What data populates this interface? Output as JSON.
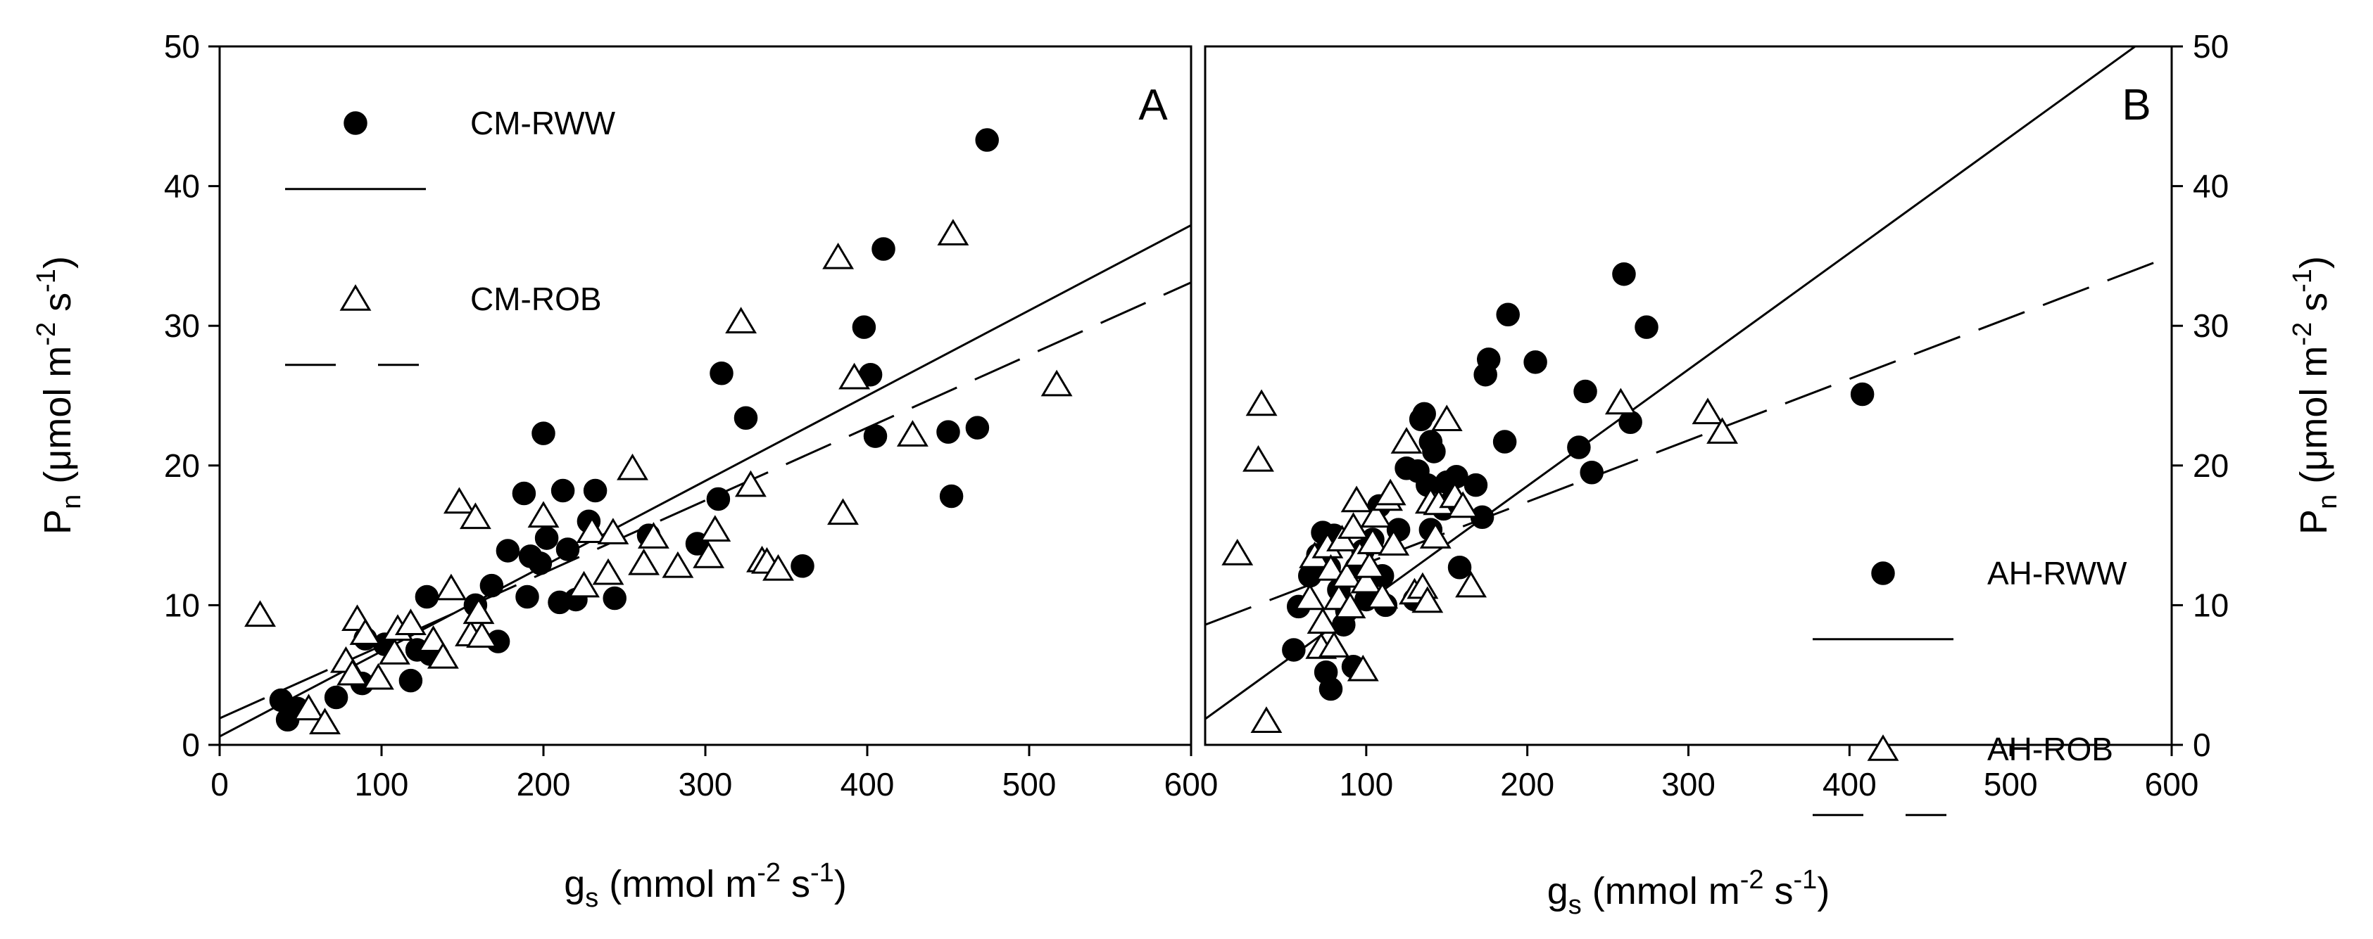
{
  "chart_data": [
    {
      "id": "A",
      "type": "scatter",
      "panel_label": "A",
      "xlabel": {
        "base": "g",
        "sub": "s",
        "unit_pre": " (mmol m",
        "sup1": "-2",
        "unit_mid": " s",
        "sup2": "-1",
        "unit_post": ")"
      },
      "ylabel": {
        "base": "P",
        "sub": "n",
        "unit_pre": " (μmol m",
        "sup1": "-2",
        "unit_mid": " s",
        "sup2": "-1",
        "unit_post": ")"
      },
      "xlim": [
        0,
        600
      ],
      "ylim": [
        0,
        50
      ],
      "xticks": [
        "0",
        "100",
        "200",
        "300",
        "400",
        "500",
        "600"
      ],
      "yticks": [
        "0",
        "10",
        "20",
        "30",
        "40",
        "50"
      ],
      "legend_position": "top-left",
      "series": [
        {
          "name": "CM-RWW",
          "marker": "filled-circle",
          "line_style": "solid",
          "fit": {
            "slope": 0.061,
            "intercept": 0.6
          },
          "points": [
            [
              38,
              3.2
            ],
            [
              42,
              1.8
            ],
            [
              48,
              2.6
            ],
            [
              72,
              3.4
            ],
            [
              88,
              4.4
            ],
            [
              90,
              7.6
            ],
            [
              102,
              7.2
            ],
            [
              118,
              4.6
            ],
            [
              122,
              6.8
            ],
            [
              128,
              10.6
            ],
            [
              130,
              6.5
            ],
            [
              158,
              10
            ],
            [
              168,
              11.4
            ],
            [
              172,
              7.4
            ],
            [
              178,
              13.9
            ],
            [
              188,
              18
            ],
            [
              190,
              10.6
            ],
            [
              192,
              13.5
            ],
            [
              198,
              13
            ],
            [
              200,
              22.3
            ],
            [
              202,
              14.8
            ],
            [
              210,
              10.2
            ],
            [
              212,
              18.2
            ],
            [
              215,
              14
            ],
            [
              220,
              10.4
            ],
            [
              228,
              16
            ],
            [
              232,
              18.2
            ],
            [
              244,
              10.5
            ],
            [
              265,
              15
            ],
            [
              295,
              14.4
            ],
            [
              308,
              17.6
            ],
            [
              310,
              26.6
            ],
            [
              325,
              23.4
            ],
            [
              360,
              12.8
            ],
            [
              398,
              29.9
            ],
            [
              402,
              26.5
            ],
            [
              405,
              22.1
            ],
            [
              410,
              35.5
            ],
            [
              450,
              22.4
            ],
            [
              452,
              17.8
            ],
            [
              468,
              22.7
            ],
            [
              474,
              43.3
            ]
          ]
        },
        {
          "name": "CM-ROB",
          "marker": "open-triangle",
          "line_style": "dashed",
          "fit": {
            "slope": 0.052,
            "intercept": 1.9
          },
          "points": [
            [
              25,
              9.3
            ],
            [
              55,
              2.6
            ],
            [
              65,
              1.6
            ],
            [
              78,
              6
            ],
            [
              82,
              5.1
            ],
            [
              85,
              9
            ],
            [
              90,
              8
            ],
            [
              98,
              4.8
            ],
            [
              108,
              6.6
            ],
            [
              110,
              8.3
            ],
            [
              118,
              8.7
            ],
            [
              132,
              7.5
            ],
            [
              138,
              6.3
            ],
            [
              143,
              11.2
            ],
            [
              148,
              17.4
            ],
            [
              155,
              7.9
            ],
            [
              158,
              16.3
            ],
            [
              162,
              7.8
            ],
            [
              160,
              9.5
            ],
            [
              200,
              16.4
            ],
            [
              225,
              11.4
            ],
            [
              230,
              15.3
            ],
            [
              240,
              12.3
            ],
            [
              243,
              15.2
            ],
            [
              255,
              19.8
            ],
            [
              262,
              13
            ],
            [
              268,
              14.9
            ],
            [
              283,
              12.8
            ],
            [
              302,
              13.5
            ],
            [
              306,
              15.4
            ],
            [
              322,
              30.3
            ],
            [
              328,
              18.6
            ],
            [
              335,
              13.2
            ],
            [
              338,
              13.1
            ],
            [
              345,
              12.6
            ],
            [
              382,
              34.9
            ],
            [
              385,
              16.6
            ],
            [
              392,
              26.3
            ],
            [
              428,
              22.2
            ],
            [
              453,
              36.6
            ],
            [
              517,
              25.8
            ]
          ]
        }
      ]
    },
    {
      "id": "B",
      "type": "scatter",
      "panel_label": "B",
      "xlabel": {
        "base": "g",
        "sub": "s",
        "unit_pre": " (mmol m",
        "sup1": "-2",
        "unit_mid": " s",
        "sup2": "-1",
        "unit_post": ")"
      },
      "ylabel": {
        "base": "P",
        "sub": "n",
        "unit_pre": " (μmol m",
        "sup1": "-2",
        "unit_mid": " s",
        "sup2": "-1",
        "unit_post": ")"
      },
      "xlim": [
        0,
        600
      ],
      "ylim": [
        0,
        50
      ],
      "xticks": [
        "100",
        "200",
        "300",
        "400",
        "500",
        "600"
      ],
      "yticks": [
        "0",
        "10",
        "20",
        "30",
        "40",
        "50"
      ],
      "legend_position": "bottom-right",
      "series": [
        {
          "name": "AH-RWW",
          "marker": "filled-circle",
          "line_style": "solid",
          "fit": {
            "slope": 0.0834,
            "intercept": 1.85
          },
          "points": [
            [
              55,
              6.8
            ],
            [
              58,
              9.9
            ],
            [
              65,
              12.1
            ],
            [
              70,
              13.6
            ],
            [
              73,
              15.2
            ],
            [
              75,
              5.2
            ],
            [
              77,
              12.7
            ],
            [
              78,
              4
            ],
            [
              80,
              15
            ],
            [
              83,
              11.1
            ],
            [
              86,
              8.6
            ],
            [
              88,
              9.6
            ],
            [
              92,
              5.6
            ],
            [
              94,
              12.7
            ],
            [
              98,
              13.9
            ],
            [
              100,
              10.4
            ],
            [
              104,
              14.7
            ],
            [
              108,
              17.1
            ],
            [
              110,
              12.1
            ],
            [
              112,
              10
            ],
            [
              120,
              15.4
            ],
            [
              125,
              19.8
            ],
            [
              130,
              10.4
            ],
            [
              132,
              19.6
            ],
            [
              134,
              23.3
            ],
            [
              136,
              23.7
            ],
            [
              138,
              18.6
            ],
            [
              140,
              21.7
            ],
            [
              140,
              15.4
            ],
            [
              142,
              21
            ],
            [
              148,
              16.9
            ],
            [
              150,
              18.8
            ],
            [
              152,
              17.3
            ],
            [
              156,
              19.2
            ],
            [
              158,
              12.7
            ],
            [
              168,
              18.6
            ],
            [
              172,
              16.3
            ],
            [
              174,
              26.5
            ],
            [
              176,
              27.6
            ],
            [
              186,
              21.7
            ],
            [
              188,
              30.8
            ],
            [
              205,
              27.4
            ],
            [
              232,
              21.3
            ],
            [
              236,
              25.3
            ],
            [
              240,
              19.5
            ],
            [
              260,
              33.7
            ],
            [
              264,
              23.1
            ],
            [
              274,
              29.9
            ],
            [
              408,
              25.1
            ]
          ]
        },
        {
          "name": "AH-ROB",
          "marker": "open-triangle",
          "line_style": "dashed",
          "fit": {
            "slope": 0.044,
            "intercept": 8.6
          },
          "points": [
            [
              20,
              13.7
            ],
            [
              33,
              20.4
            ],
            [
              35,
              24.4
            ],
            [
              38,
              1.7
            ],
            [
              65,
              10.5
            ],
            [
              68,
              13.5
            ],
            [
              72,
              7
            ],
            [
              73,
              8.8
            ],
            [
              76,
              14.2
            ],
            [
              78,
              12.6
            ],
            [
              80,
              7.1
            ],
            [
              83,
              10.5
            ],
            [
              85,
              14.7
            ],
            [
              88,
              12.1
            ],
            [
              90,
              9.9
            ],
            [
              92,
              15.6
            ],
            [
              94,
              17.5
            ],
            [
              96,
              13.6
            ],
            [
              98,
              5.4
            ],
            [
              100,
              11.7
            ],
            [
              102,
              12.8
            ],
            [
              104,
              14.5
            ],
            [
              106,
              16.4
            ],
            [
              110,
              10.6
            ],
            [
              113,
              17.6
            ],
            [
              115,
              18
            ],
            [
              117,
              14.4
            ],
            [
              125,
              21.7
            ],
            [
              130,
              10.9
            ],
            [
              135,
              11.3
            ],
            [
              138,
              10.3
            ],
            [
              140,
              17.4
            ],
            [
              143,
              14.9
            ],
            [
              145,
              17.3
            ],
            [
              150,
              23.3
            ],
            [
              155,
              17.8
            ],
            [
              160,
              17.1
            ],
            [
              165,
              11.4
            ],
            [
              258,
              24.5
            ],
            [
              312,
              23.8
            ],
            [
              321,
              22.4
            ]
          ]
        }
      ]
    }
  ]
}
